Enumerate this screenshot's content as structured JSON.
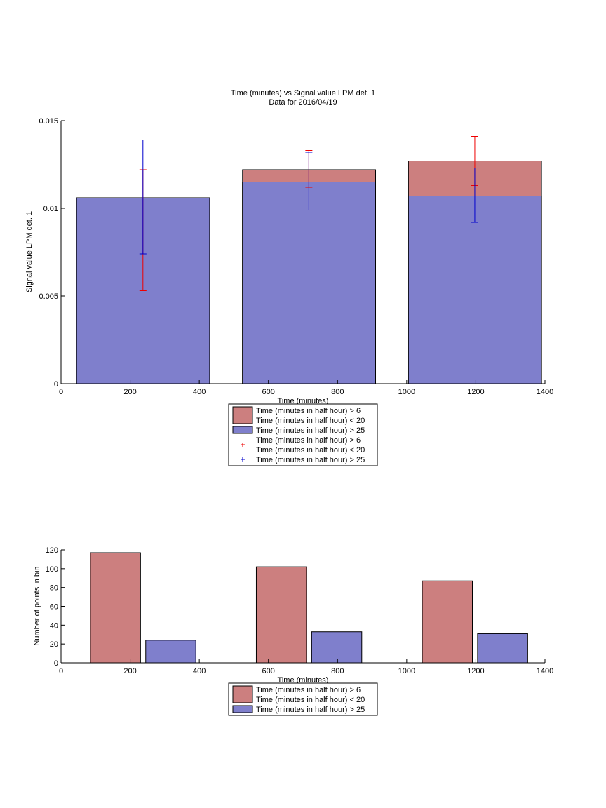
{
  "colors": {
    "red_bar": "#cc7f7f",
    "blue_bar": "#7f7fcc",
    "red_err": "#ee0000",
    "blue_err": "#0000cc"
  },
  "chart_data": [
    {
      "type": "bar",
      "title": "Time (minutes) vs Signal value LPM det. 1",
      "subtitle": "Data for 2016/04/19",
      "xlabel": "Time (minutes)",
      "ylabel": "Signal value LPM det. 1",
      "xlim": [
        0,
        1400
      ],
      "ylim": [
        0,
        0.015
      ],
      "xticks": [
        "0",
        "200",
        "400",
        "600",
        "800",
        "1000",
        "1200",
        "1400"
      ],
      "xtick_values": [
        0,
        200,
        400,
        600,
        800,
        1000,
        1200,
        1400
      ],
      "yticks": [
        "0",
        "0.005",
        "0.01",
        "0.015"
      ],
      "ytick_values": [
        0,
        0.005,
        0.01,
        0.015
      ],
      "bar_ranges": [
        [
          45,
          430
        ],
        [
          525,
          910
        ],
        [
          1005,
          1390
        ]
      ],
      "series": [
        {
          "name": "Time (minutes in half hour) > 6\nTime (minutes in half hour) < 20",
          "color": "red",
          "values": [
            0.0106,
            0.0122,
            0.0127
          ]
        },
        {
          "name": "Time (minutes in half hour) > 25",
          "color": "blue",
          "values": [
            0.0106,
            0.0115,
            0.0107
          ]
        }
      ],
      "errorbars": [
        {
          "name": "Time (minutes in half hour) > 6\nTime (minutes in half hour) < 20",
          "color": "red",
          "x": [
            237,
            717,
            1197
          ],
          "low": [
            0.0053,
            0.0112,
            0.0113
          ],
          "high": [
            0.0122,
            0.0133,
            0.0141
          ]
        },
        {
          "name": "Time (minutes in half hour) > 25",
          "color": "blue",
          "x": [
            237,
            717,
            1197
          ],
          "low": [
            0.0074,
            0.0099,
            0.0092
          ],
          "high": [
            0.0139,
            0.0132,
            0.0123
          ]
        }
      ],
      "legend": [
        {
          "kind": "patch",
          "color": "red",
          "lines": [
            "Time (minutes in half hour) > 6",
            "Time (minutes in half hour) < 20"
          ]
        },
        {
          "kind": "patch",
          "color": "blue",
          "lines": [
            "Time (minutes in half hour) > 25"
          ]
        },
        {
          "kind": "marker",
          "color": "red",
          "lines": [
            "Time (minutes in half hour) > 6",
            "Time (minutes in half hour) < 20"
          ]
        },
        {
          "kind": "marker",
          "color": "blue",
          "lines": [
            "Time (minutes in half hour) > 25"
          ]
        }
      ]
    },
    {
      "type": "bar",
      "title": "",
      "xlabel": "Time (minutes)",
      "ylabel": "Number of points in bin",
      "xlim": [
        0,
        1400
      ],
      "ylim": [
        0,
        120
      ],
      "xticks": [
        "0",
        "200",
        "400",
        "600",
        "800",
        "1000",
        "1200",
        "1400"
      ],
      "xtick_values": [
        0,
        200,
        400,
        600,
        800,
        1000,
        1200,
        1400
      ],
      "yticks": [
        "0",
        "20",
        "40",
        "60",
        "80",
        "100",
        "120"
      ],
      "ytick_values": [
        0,
        20,
        40,
        60,
        80,
        100,
        120
      ],
      "bars": [
        {
          "series": "red",
          "x0": 85,
          "x1": 230,
          "value": 117
        },
        {
          "series": "blue",
          "x0": 245,
          "x1": 390,
          "value": 24
        },
        {
          "series": "red",
          "x0": 565,
          "x1": 710,
          "value": 102
        },
        {
          "series": "blue",
          "x0": 725,
          "x1": 870,
          "value": 33
        },
        {
          "series": "red",
          "x0": 1045,
          "x1": 1190,
          "value": 87
        },
        {
          "series": "blue",
          "x0": 1205,
          "x1": 1350,
          "value": 31
        }
      ],
      "legend": [
        {
          "kind": "patch",
          "color": "red",
          "lines": [
            "Time (minutes in half hour) > 6",
            "Time (minutes in half hour) < 20"
          ]
        },
        {
          "kind": "patch",
          "color": "blue",
          "lines": [
            "Time (minutes in half hour) > 25"
          ]
        }
      ]
    }
  ]
}
